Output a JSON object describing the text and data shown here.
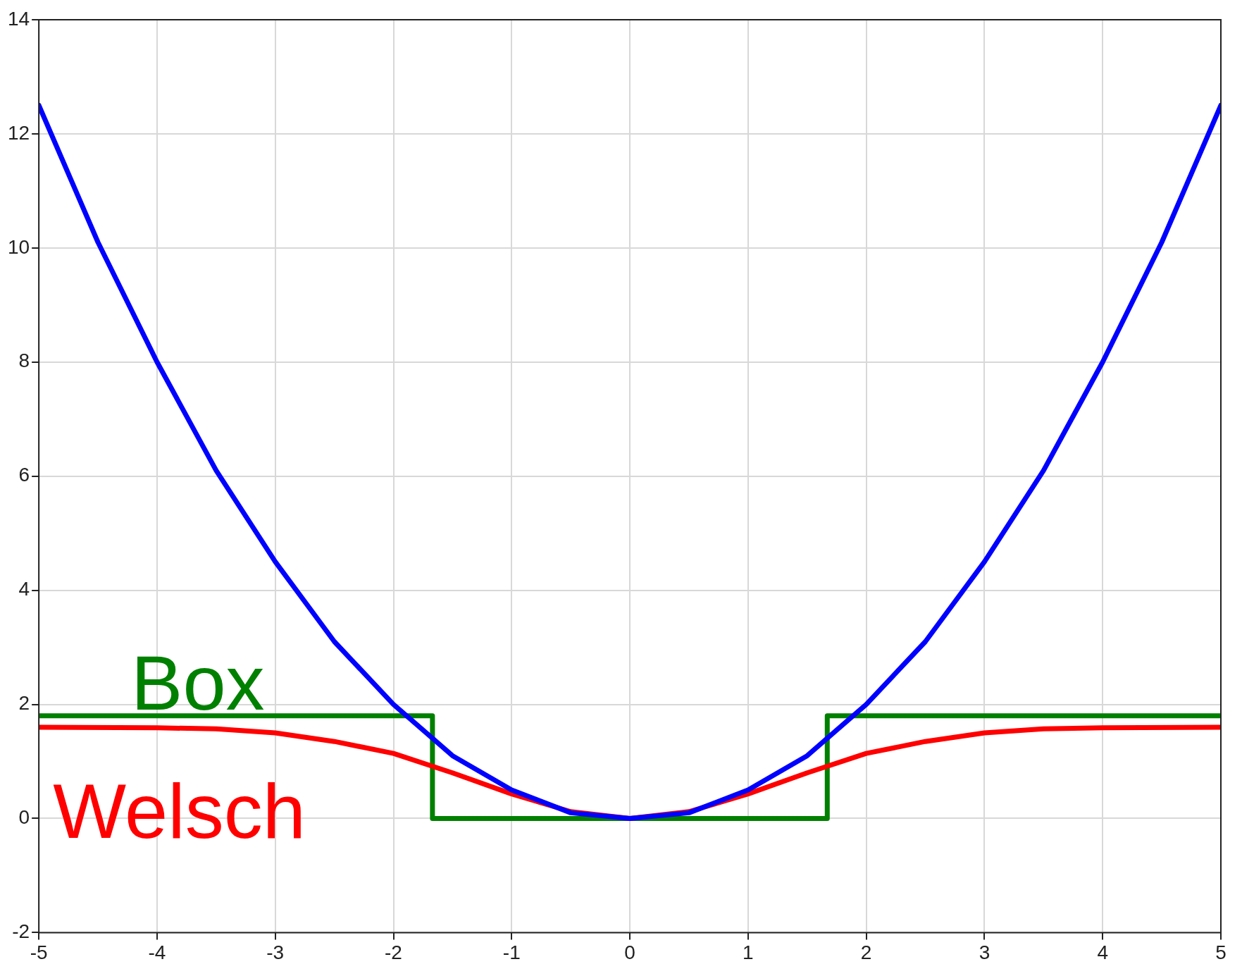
{
  "chart_data": {
    "type": "line",
    "xlim": [
      -5,
      5
    ],
    "ylim": [
      -2,
      14
    ],
    "xticks": [
      -5,
      -4,
      -3,
      -2,
      -1,
      0,
      1,
      2,
      3,
      4,
      5
    ],
    "yticks": [
      -2,
      0,
      2,
      4,
      6,
      8,
      10,
      12,
      14
    ],
    "grid": true,
    "legend": false,
    "marker": "none",
    "line_style": "solid",
    "series": [
      {
        "color": "#0000ff",
        "x": [
          -5,
          -4.5,
          -4,
          -3.5,
          -3,
          -2.5,
          -2,
          -1.5,
          -1,
          -0.5,
          0,
          0.5,
          1,
          1.5,
          2,
          2.5,
          3,
          3.5,
          4,
          4.5,
          5
        ],
        "values": [
          12.5,
          10.1,
          8,
          6.1,
          4.5,
          3.1,
          2,
          1.1,
          0.5,
          0.1,
          0,
          0.1,
          0.5,
          1.1,
          2,
          3.1,
          4.5,
          6.1,
          8,
          10.1,
          12.5
        ]
      },
      {
        "name": "Welsch",
        "color": "#ff0000",
        "x": [
          -5,
          -4,
          -3.5,
          -3,
          -2.5,
          -2,
          -1.5,
          -1,
          -0.5,
          0,
          0.5,
          1,
          1.5,
          2,
          2.5,
          3,
          3.5,
          4,
          5
        ],
        "values": [
          1.6,
          1.59,
          1.57,
          1.5,
          1.35,
          1.14,
          0.8,
          0.43,
          0.12,
          0,
          0.12,
          0.43,
          0.8,
          1.14,
          1.35,
          1.5,
          1.57,
          1.59,
          1.6
        ]
      },
      {
        "name": "Box",
        "color": "#008000",
        "x": [
          -5,
          -1.67,
          -1.67,
          1.67,
          1.67,
          5
        ],
        "values": [
          1.8,
          1.8,
          0,
          0,
          1.8,
          1.8
        ]
      }
    ]
  }
}
